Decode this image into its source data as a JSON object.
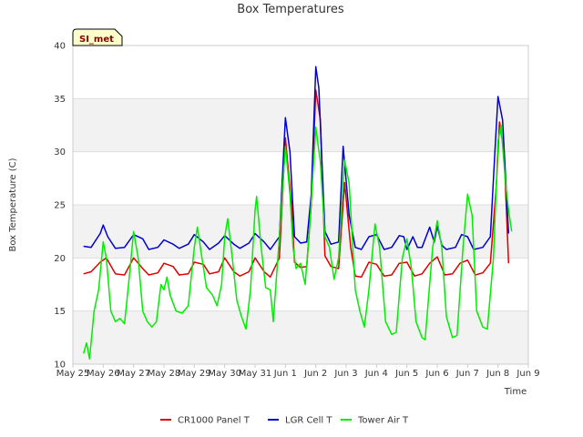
{
  "chart_data": {
    "type": "line",
    "title": "Box Temperatures",
    "xlabel": "Time",
    "ylabel": "Box Temperature (C)",
    "badge": "SI_met",
    "ylim": [
      10,
      40
    ],
    "yticks": [
      10,
      15,
      20,
      25,
      30,
      35,
      40
    ],
    "xlim": [
      0,
      15
    ],
    "xticks": [
      {
        "v": 0,
        "label": "May 25"
      },
      {
        "v": 1,
        "label": "May 26"
      },
      {
        "v": 2,
        "label": "May 27"
      },
      {
        "v": 3,
        "label": "May 28"
      },
      {
        "v": 4,
        "label": "May 29"
      },
      {
        "v": 5,
        "label": "May 30"
      },
      {
        "v": 6,
        "label": "May 31"
      },
      {
        "v": 7,
        "label": "Jun 1"
      },
      {
        "v": 8,
        "label": "Jun 2"
      },
      {
        "v": 9,
        "label": "Jun 3"
      },
      {
        "v": 10,
        "label": "Jun 4"
      },
      {
        "v": 11,
        "label": "Jun 5"
      },
      {
        "v": 12,
        "label": "Jun 6"
      },
      {
        "v": 13,
        "label": "Jun 7"
      },
      {
        "v": 14,
        "label": "Jun 8"
      },
      {
        "v": 15,
        "label": "Jun 9"
      }
    ],
    "grid": true,
    "bands": [
      [
        10,
        15
      ],
      [
        20,
        25
      ],
      [
        30,
        35
      ]
    ],
    "legend_position": "bottom",
    "series": [
      {
        "name": "CR1000 Panel T",
        "color": "#dd0000",
        "points": [
          [
            0.35,
            18.5
          ],
          [
            0.6,
            18.7
          ],
          [
            0.9,
            19.6
          ],
          [
            1.1,
            20.0
          ],
          [
            1.4,
            18.5
          ],
          [
            1.7,
            18.4
          ],
          [
            2.0,
            20.0
          ],
          [
            2.3,
            19.0
          ],
          [
            2.5,
            18.4
          ],
          [
            2.8,
            18.6
          ],
          [
            3.0,
            19.5
          ],
          [
            3.3,
            19.2
          ],
          [
            3.5,
            18.4
          ],
          [
            3.8,
            18.5
          ],
          [
            4.0,
            19.6
          ],
          [
            4.3,
            19.4
          ],
          [
            4.5,
            18.5
          ],
          [
            4.8,
            18.7
          ],
          [
            5.0,
            20.0
          ],
          [
            5.3,
            18.7
          ],
          [
            5.5,
            18.3
          ],
          [
            5.8,
            18.7
          ],
          [
            6.0,
            20.0
          ],
          [
            6.3,
            18.7
          ],
          [
            6.5,
            18.2
          ],
          [
            6.8,
            20.0
          ],
          [
            7.0,
            31.3
          ],
          [
            7.2,
            25.0
          ],
          [
            7.3,
            19.6
          ],
          [
            7.5,
            19.1
          ],
          [
            7.7,
            19.2
          ],
          [
            7.85,
            25.0
          ],
          [
            8.0,
            35.8
          ],
          [
            8.15,
            33.0
          ],
          [
            8.3,
            20.2
          ],
          [
            8.5,
            19.2
          ],
          [
            8.75,
            19.0
          ],
          [
            8.95,
            27.1
          ],
          [
            9.15,
            21.0
          ],
          [
            9.3,
            18.3
          ],
          [
            9.5,
            18.2
          ],
          [
            9.75,
            19.6
          ],
          [
            10.0,
            19.4
          ],
          [
            10.25,
            18.3
          ],
          [
            10.5,
            18.4
          ],
          [
            10.75,
            19.5
          ],
          [
            11.0,
            19.6
          ],
          [
            11.25,
            18.3
          ],
          [
            11.5,
            18.5
          ],
          [
            11.75,
            19.5
          ],
          [
            12.0,
            20.1
          ],
          [
            12.25,
            18.4
          ],
          [
            12.5,
            18.5
          ],
          [
            12.75,
            19.5
          ],
          [
            13.0,
            19.8
          ],
          [
            13.25,
            18.4
          ],
          [
            13.5,
            18.6
          ],
          [
            13.75,
            19.5
          ],
          [
            13.95,
            27.0
          ],
          [
            14.05,
            32.8
          ],
          [
            14.2,
            30.0
          ],
          [
            14.35,
            19.5
          ]
        ]
      },
      {
        "name": "LGR Cell T",
        "color": "#0000cc",
        "points": [
          [
            0.35,
            21.1
          ],
          [
            0.6,
            21.0
          ],
          [
            0.9,
            22.3
          ],
          [
            1.0,
            23.1
          ],
          [
            1.15,
            22.0
          ],
          [
            1.4,
            20.9
          ],
          [
            1.7,
            21.0
          ],
          [
            2.0,
            22.2
          ],
          [
            2.3,
            21.8
          ],
          [
            2.5,
            20.8
          ],
          [
            2.8,
            21.0
          ],
          [
            3.0,
            21.7
          ],
          [
            3.3,
            21.3
          ],
          [
            3.5,
            20.9
          ],
          [
            3.8,
            21.3
          ],
          [
            4.0,
            22.2
          ],
          [
            4.3,
            21.5
          ],
          [
            4.5,
            20.8
          ],
          [
            4.8,
            21.4
          ],
          [
            5.0,
            22.1
          ],
          [
            5.3,
            21.3
          ],
          [
            5.5,
            20.9
          ],
          [
            5.8,
            21.4
          ],
          [
            6.0,
            22.3
          ],
          [
            6.3,
            21.5
          ],
          [
            6.5,
            20.8
          ],
          [
            6.8,
            22.0
          ],
          [
            7.0,
            33.2
          ],
          [
            7.15,
            30.0
          ],
          [
            7.3,
            22.0
          ],
          [
            7.5,
            21.4
          ],
          [
            7.7,
            21.5
          ],
          [
            7.85,
            26.0
          ],
          [
            8.0,
            38.0
          ],
          [
            8.1,
            36.0
          ],
          [
            8.3,
            22.5
          ],
          [
            8.5,
            21.3
          ],
          [
            8.75,
            21.5
          ],
          [
            8.9,
            30.5
          ],
          [
            9.1,
            24.0
          ],
          [
            9.3,
            21.0
          ],
          [
            9.5,
            20.8
          ],
          [
            9.75,
            22.0
          ],
          [
            10.0,
            22.2
          ],
          [
            10.25,
            20.8
          ],
          [
            10.5,
            21.0
          ],
          [
            10.75,
            22.1
          ],
          [
            10.9,
            22.0
          ],
          [
            11.0,
            20.8
          ],
          [
            11.2,
            22.0
          ],
          [
            11.35,
            21.0
          ],
          [
            11.5,
            21.0
          ],
          [
            11.75,
            22.9
          ],
          [
            11.9,
            21.5
          ],
          [
            12.0,
            23.0
          ],
          [
            12.15,
            21.2
          ],
          [
            12.3,
            20.8
          ],
          [
            12.6,
            21.0
          ],
          [
            12.8,
            22.2
          ],
          [
            13.0,
            22.0
          ],
          [
            13.2,
            20.8
          ],
          [
            13.5,
            21.0
          ],
          [
            13.75,
            22.0
          ],
          [
            13.9,
            30.0
          ],
          [
            14.0,
            35.2
          ],
          [
            14.15,
            33.0
          ],
          [
            14.35,
            22.3
          ]
        ]
      },
      {
        "name": "Tower Air T",
        "color": "#00ee00",
        "points": [
          [
            0.35,
            11.0
          ],
          [
            0.45,
            12.0
          ],
          [
            0.55,
            10.5
          ],
          [
            0.7,
            15.0
          ],
          [
            0.85,
            17.0
          ],
          [
            1.0,
            21.5
          ],
          [
            1.1,
            20.0
          ],
          [
            1.25,
            15.0
          ],
          [
            1.4,
            14.0
          ],
          [
            1.55,
            14.3
          ],
          [
            1.7,
            13.8
          ],
          [
            1.85,
            18.0
          ],
          [
            2.0,
            22.5
          ],
          [
            2.15,
            20.0
          ],
          [
            2.3,
            15.0
          ],
          [
            2.45,
            14.0
          ],
          [
            2.6,
            13.5
          ],
          [
            2.75,
            14.0
          ],
          [
            2.9,
            17.5
          ],
          [
            3.0,
            17.0
          ],
          [
            3.1,
            18.2
          ],
          [
            3.2,
            16.5
          ],
          [
            3.4,
            15.0
          ],
          [
            3.6,
            14.8
          ],
          [
            3.8,
            15.5
          ],
          [
            4.0,
            21.0
          ],
          [
            4.1,
            22.9
          ],
          [
            4.25,
            20.0
          ],
          [
            4.4,
            17.2
          ],
          [
            4.6,
            16.5
          ],
          [
            4.75,
            15.5
          ],
          [
            4.9,
            17.5
          ],
          [
            5.0,
            22.0
          ],
          [
            5.1,
            23.7
          ],
          [
            5.25,
            20.0
          ],
          [
            5.4,
            16.0
          ],
          [
            5.55,
            14.5
          ],
          [
            5.7,
            13.3
          ],
          [
            5.85,
            17.0
          ],
          [
            6.0,
            24.5
          ],
          [
            6.05,
            25.8
          ],
          [
            6.2,
            21.0
          ],
          [
            6.35,
            17.2
          ],
          [
            6.5,
            17.0
          ],
          [
            6.6,
            14.0
          ],
          [
            6.8,
            22.0
          ],
          [
            7.0,
            30.5
          ],
          [
            7.15,
            26.0
          ],
          [
            7.25,
            21.0
          ],
          [
            7.35,
            19.0
          ],
          [
            7.5,
            19.5
          ],
          [
            7.65,
            17.5
          ],
          [
            7.8,
            23.0
          ],
          [
            8.0,
            32.3
          ],
          [
            8.15,
            29.0
          ],
          [
            8.3,
            22.0
          ],
          [
            8.45,
            21.0
          ],
          [
            8.6,
            18.0
          ],
          [
            8.75,
            20.0
          ],
          [
            8.95,
            29.2
          ],
          [
            9.1,
            27.0
          ],
          [
            9.3,
            17.0
          ],
          [
            9.45,
            15.0
          ],
          [
            9.6,
            13.5
          ],
          [
            9.75,
            17.0
          ],
          [
            9.95,
            23.2
          ],
          [
            10.1,
            21.0
          ],
          [
            10.3,
            14.0
          ],
          [
            10.5,
            12.8
          ],
          [
            10.65,
            13.0
          ],
          [
            10.85,
            20.0
          ],
          [
            11.0,
            21.8
          ],
          [
            11.15,
            19.0
          ],
          [
            11.3,
            14.0
          ],
          [
            11.5,
            12.5
          ],
          [
            11.6,
            12.3
          ],
          [
            11.85,
            21.0
          ],
          [
            12.0,
            23.5
          ],
          [
            12.15,
            21.0
          ],
          [
            12.3,
            14.5
          ],
          [
            12.5,
            12.5
          ],
          [
            12.65,
            12.7
          ],
          [
            12.85,
            21.0
          ],
          [
            13.0,
            26.0
          ],
          [
            13.15,
            24.0
          ],
          [
            13.3,
            15.0
          ],
          [
            13.5,
            13.5
          ],
          [
            13.65,
            13.3
          ],
          [
            13.85,
            20.0
          ],
          [
            14.0,
            31.0
          ],
          [
            14.1,
            32.5
          ],
          [
            14.25,
            27.0
          ],
          [
            14.35,
            24.5
          ],
          [
            14.45,
            22.5
          ]
        ]
      }
    ]
  }
}
